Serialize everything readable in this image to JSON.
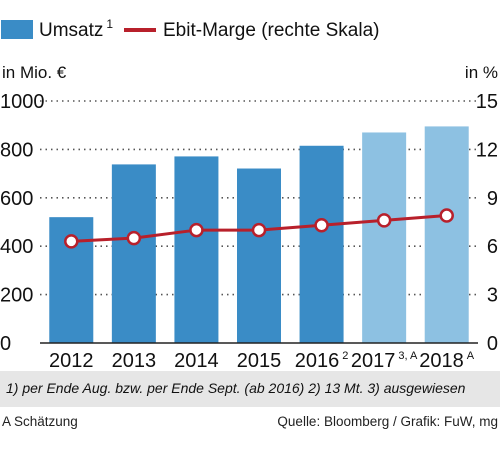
{
  "chart_data": {
    "type": "bar",
    "categories": [
      "2012",
      "2013",
      "2014",
      "2015",
      "2016",
      "2017",
      "2018"
    ],
    "category_superscripts": [
      "",
      "",
      "",
      "",
      "2",
      "3, A",
      "A"
    ],
    "series": [
      {
        "name": "Umsatz",
        "name_superscript": "1",
        "type": "bar",
        "axis": "left",
        "values": [
          520,
          738,
          771,
          721,
          815,
          870,
          895
        ],
        "colors": [
          "#3a8cc6",
          "#3a8cc6",
          "#3a8cc6",
          "#3a8cc6",
          "#3a8cc6",
          "#8dc1e2",
          "#8dc1e2"
        ]
      },
      {
        "name": "Ebit-Marge (rechte Skala)",
        "type": "line",
        "axis": "right",
        "values": [
          6.3,
          6.5,
          7.0,
          7.0,
          7.3,
          7.6,
          7.9
        ],
        "color": "#b8202b"
      }
    ],
    "yaxis_left": {
      "unit_label": "in Mio. €",
      "range": [
        0,
        1000
      ],
      "ticks": [
        "0",
        "200",
        "400",
        "600",
        "800",
        "1000"
      ]
    },
    "yaxis_right": {
      "unit_label": "in %",
      "range": [
        0,
        15
      ],
      "ticks": [
        "0",
        "3",
        "6",
        "9",
        "12",
        "15"
      ]
    },
    "grid": "dotted horizontal",
    "legend_position": "top",
    "footnote": "1) per Ende Aug. bzw. per Ende Sept. (ab 2016)     2) 13 Mt.     3) ausgewiesen",
    "note_left": "A Schätzung",
    "source": "Quelle: Bloomberg / Grafik: FuW, mg"
  }
}
